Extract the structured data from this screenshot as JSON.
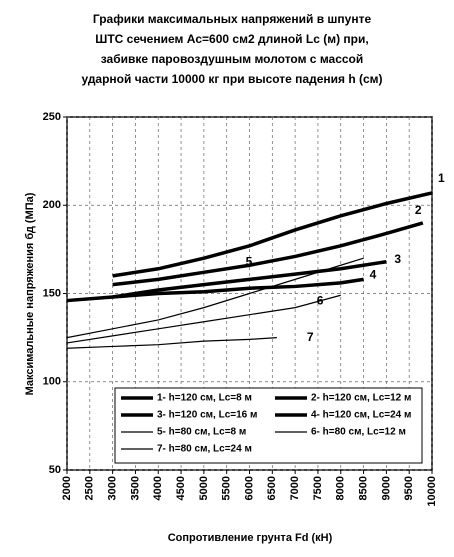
{
  "chart_data": {
    "type": "line",
    "title": [
      "Графики максимальных напряжений в шпунте",
      "ШТС сечением Ac=600 см2  длиной Lc (м) при,",
      "забивке паровоздушным молотом с массой",
      "ударной части 10000 кг при высоте падения h (см)"
    ],
    "x_label": "Сопротивление грунта Fd (кН)",
    "y_label": "Максимальные напряжения бд  (МПа)",
    "xlim": [
      2000,
      10000
    ],
    "xticks": [
      2000,
      2500,
      3000,
      3500,
      4000,
      4500,
      5000,
      5500,
      6000,
      6500,
      7000,
      7500,
      8000,
      8500,
      9000,
      9500,
      10000
    ],
    "ylim": [
      50,
      250
    ],
    "yticks": [
      50,
      100,
      150,
      200,
      250
    ],
    "grid": true,
    "series": [
      {
        "name": "1- h=120 см, Lc=8 м",
        "label": "1",
        "color": "#000",
        "line_width": 3.5,
        "x": [
          3000,
          4000,
          5000,
          6000,
          7000,
          8000,
          9000,
          10000
        ],
        "values": [
          160,
          164,
          170,
          177,
          186,
          194,
          201,
          207
        ]
      },
      {
        "name": "2- h=120 см, Lc=12 м",
        "label": "2",
        "color": "#000",
        "line_width": 3.5,
        "x": [
          3000,
          4000,
          5000,
          6000,
          7000,
          8000,
          9000,
          9800
        ],
        "values": [
          155,
          158,
          162,
          166,
          171,
          177,
          184,
          190
        ]
      },
      {
        "name": "3- h=120 см, Lc=16 м",
        "label": "3",
        "color": "#000",
        "line_width": 3.5,
        "x": [
          2000,
          3000,
          4000,
          5000,
          6000,
          7000,
          8000,
          9000
        ],
        "values": [
          146,
          148,
          152,
          155,
          158,
          161,
          164,
          168
        ]
      },
      {
        "name": "4- h=120 см, Lc=24 м",
        "label": "4",
        "color": "#000",
        "line_width": 3.5,
        "x": [
          3000,
          4000,
          5000,
          6000,
          7000,
          8000,
          8500
        ],
        "values": [
          148,
          150,
          151,
          153,
          154,
          156,
          158
        ]
      },
      {
        "name": "5- h=80 см, Lc=8 м",
        "label": "5",
        "color": "#000",
        "line_width": 1.2,
        "x": [
          2000,
          3000,
          4000,
          5000,
          6000,
          7000,
          8000,
          8500
        ],
        "values": [
          125,
          130,
          135,
          142,
          150,
          158,
          166,
          170
        ]
      },
      {
        "name": "6- h=80 см, Lc=12 м",
        "label": "6",
        "color": "#000",
        "line_width": 1.2,
        "x": [
          2000,
          3000,
          4000,
          5000,
          6000,
          7000,
          8000
        ],
        "values": [
          122,
          126,
          130,
          134,
          138,
          142,
          149
        ]
      },
      {
        "name": "7- h=80 см, Lc=24 м",
        "label": "7",
        "color": "#000",
        "line_width": 1.2,
        "x": [
          2000,
          3000,
          4000,
          5000,
          6000,
          6600
        ],
        "values": [
          119,
          120,
          121,
          123,
          124,
          125
        ]
      }
    ]
  }
}
